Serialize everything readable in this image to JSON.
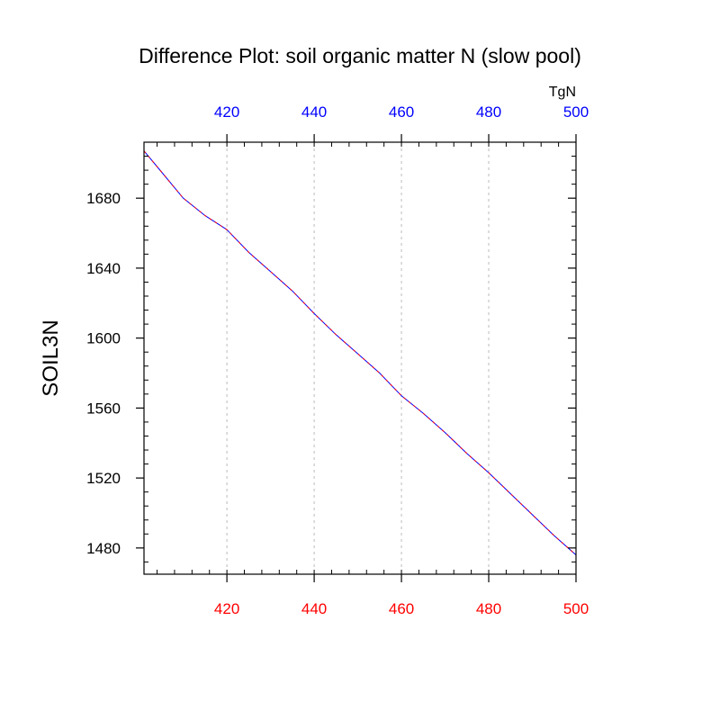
{
  "chart_data": {
    "type": "line",
    "title": "Difference Plot: soil organic matter N (slow pool)",
    "ylabel": "SOIL3N",
    "top_axis_units": "TgN",
    "xlim": [
      401,
      500
    ],
    "ylim": [
      1465,
      1712
    ],
    "x_ticks": [
      420,
      440,
      460,
      480,
      500
    ],
    "x_tick_labels": [
      "420",
      "440",
      "460",
      "480",
      "500"
    ],
    "y_ticks": [
      1480,
      1520,
      1560,
      1600,
      1640,
      1680
    ],
    "y_tick_labels": [
      "1480",
      "1520",
      "1560",
      "1600",
      "1640",
      "1680"
    ],
    "grid": "vertical-dotted",
    "colors": {
      "bottom_axis_labels": "#ff0000",
      "top_axis_labels": "#0000ff",
      "series_a": "#0000ff",
      "series_b": "#ff0000",
      "grid": "#bbbbbb"
    },
    "series": [
      {
        "x": [
          401,
          405,
          410,
          415,
          420,
          425,
          430,
          435,
          440,
          445,
          450,
          455,
          460,
          465,
          470,
          475,
          480,
          485,
          490,
          495,
          500
        ],
        "values": [
          1707,
          1695,
          1680,
          1670,
          1662,
          1649,
          1638,
          1627,
          1614,
          1602,
          1591,
          1580,
          1567,
          1557,
          1546,
          1534,
          1523,
          1511,
          1499,
          1487,
          1476
        ]
      },
      {
        "x": [
          401,
          405,
          410,
          415,
          420,
          425,
          430,
          435,
          440,
          445,
          450,
          455,
          460,
          465,
          470,
          475,
          480,
          485,
          490,
          495,
          500
        ],
        "values": [
          1707,
          1695,
          1680,
          1670,
          1662,
          1649,
          1638,
          1627,
          1614,
          1602,
          1591,
          1580,
          1567,
          1557,
          1546,
          1534,
          1523,
          1511,
          1499,
          1487,
          1476
        ]
      }
    ]
  }
}
